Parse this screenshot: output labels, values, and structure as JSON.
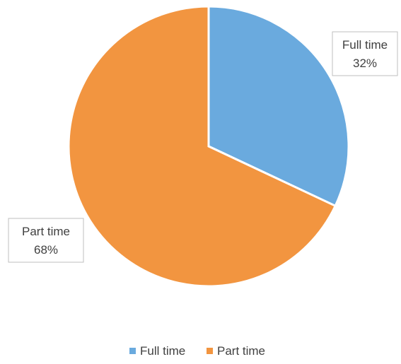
{
  "chart_data": {
    "type": "pie",
    "title": "",
    "categories": [
      "Full time",
      "Part time"
    ],
    "values": [
      32,
      68
    ],
    "data_labels": [
      {
        "name": "Full time",
        "value": "32%"
      },
      {
        "name": "Part time",
        "value": "68%"
      }
    ],
    "colors": [
      "#6aaade",
      "#f29540"
    ],
    "start_angle_deg": 0,
    "direction": "clockwise",
    "legend": {
      "placement": "bottom",
      "entries": [
        "Full time",
        "Part time"
      ]
    }
  }
}
